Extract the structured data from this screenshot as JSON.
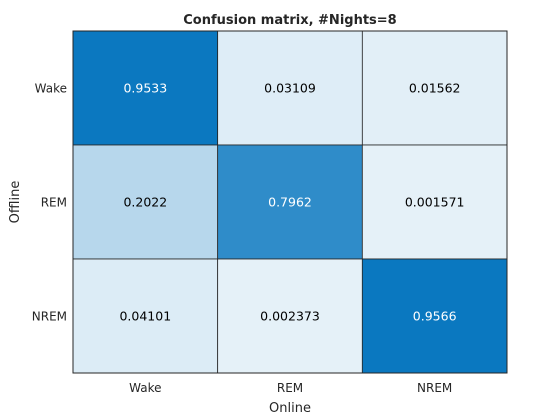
{
  "chart_data": {
    "type": "heatmap",
    "title": "Confusion matrix, #Nights=8",
    "xlabel": "Online",
    "ylabel": "Offline",
    "x_categories": [
      "Wake",
      "REM",
      "NREM"
    ],
    "y_categories": [
      "Wake",
      "REM",
      "NREM"
    ],
    "values": [
      [
        "0.9533",
        "0.03109",
        "0.01562"
      ],
      [
        "0.2022",
        "0.7962",
        "0.001571"
      ],
      [
        "0.04101",
        "0.002373",
        "0.9566"
      ]
    ],
    "colormap": {
      "low": "#ffffff",
      "high": "#0072bd"
    },
    "label_color_dark": "#000000",
    "label_color_light": "#ffffff",
    "grid": true
  }
}
